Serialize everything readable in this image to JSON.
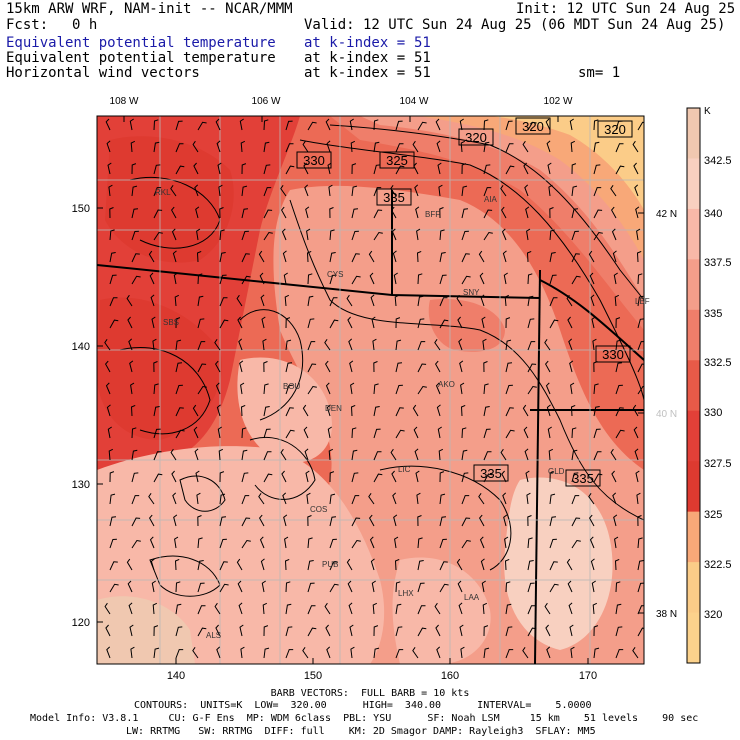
{
  "header": {
    "title": "15km ARW WRF, NAM-init -- NCAR/MMM",
    "init": "Init: 12 UTC Sun 24 Aug 25",
    "fcst_label": "Fcst:",
    "fcst_value": "0 h",
    "valid": "Valid: 12 UTC Sun 24 Aug 25 (06 MDT Sun 24 Aug 25)",
    "fields": [
      {
        "name": "Equivalent potential temperature",
        "level": "at k-index =",
        "k": "51",
        "color": "#1a1aa8"
      },
      {
        "name": "Equivalent potential temperature",
        "level": "at k-index =",
        "k": "51",
        "color": "#000000"
      },
      {
        "name": "Horizontal wind vectors",
        "level": "at k-index =",
        "k": "51",
        "color": "#000000"
      }
    ],
    "smoothing": "sm= 1"
  },
  "map": {
    "top_lon_labels": [
      "108 W",
      "106 W",
      "104 W",
      "102 W"
    ],
    "bottom_x_ticks": [
      "140",
      "150",
      "160",
      "170"
    ],
    "left_y_ticks": [
      "150",
      "140",
      "130",
      "120"
    ],
    "right_lat_labels": [
      "42 N",
      "40 N",
      "38 N"
    ],
    "stations": [
      "RKL",
      "CYS",
      "BFF",
      "AIA",
      "SNY",
      "LBF",
      "SBS",
      "BOU",
      "DEN",
      "AKO",
      "LIC",
      "GLD",
      "COS",
      "PUB",
      "LHX",
      "LAA",
      "ALS"
    ],
    "contour_labels": [
      "330",
      "325",
      "320",
      "320",
      "320",
      "335",
      "330",
      "335",
      "335"
    ]
  },
  "colorbar": {
    "unit": "K",
    "levels": [
      "342.5",
      "340",
      "337.5",
      "335",
      "332.5",
      "330",
      "327.5",
      "325",
      "322.5",
      "320"
    ],
    "colors": [
      "#f0c8b0",
      "#f8d0c0",
      "#f8b8a8",
      "#f49e8a",
      "#ef7e6a",
      "#e85a48",
      "#e24038",
      "#de3a30",
      "#f8a878",
      "#fbcc88",
      "#fcd28c"
    ]
  },
  "footer": {
    "barb": "BARB VECTORS:  FULL BARB = 10 kts",
    "contours": "CONTOURS:  UNITS=K  LOW=  320.00      HIGH=  340.00      INTERVAL=    5.0000",
    "model_info": "Model Info: V3.8.1     CU: G-F Ens  MP: WDM 6class  PBL: YSU      SF: Noah LSM     15 km    51 levels    90 sec",
    "physics": "LW: RRTMG   SW: RRTMG  DIFF: full    KM: 2D Smagor DAMP: Rayleigh3  SFLAY: MM5"
  }
}
